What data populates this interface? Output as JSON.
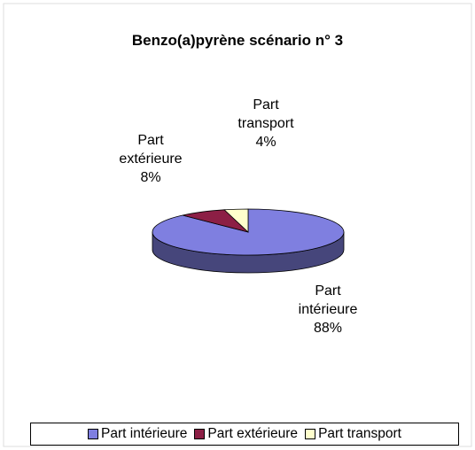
{
  "chart_data": {
    "type": "pie",
    "title": "Benzo(a)pyrène scénario n° 3",
    "categories": [
      "Part intérieure",
      "Part extérieure",
      "Part transport"
    ],
    "values": [
      88,
      8,
      4
    ],
    "value_labels": [
      "88%",
      "8%",
      "4%"
    ],
    "colors": [
      "#7f7fe0",
      "#8c1f45",
      "#ffffcc"
    ],
    "legend": "bottom"
  }
}
